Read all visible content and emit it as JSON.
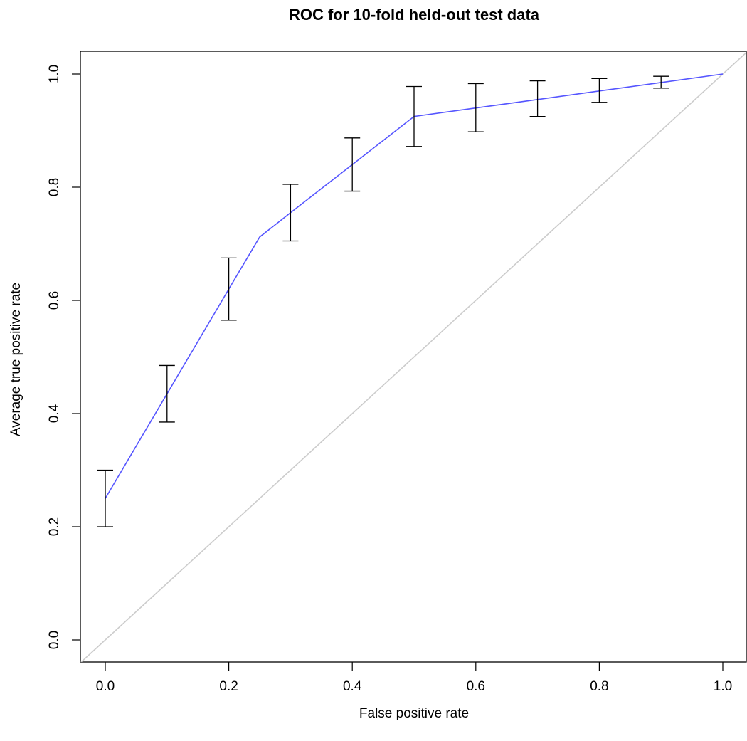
{
  "chart_data": {
    "type": "line",
    "title": "ROC for 10-fold held-out test data",
    "xlabel": "False positive rate",
    "ylabel": "Average true positive rate",
    "xlim": [
      0,
      1
    ],
    "ylim": [
      0,
      1
    ],
    "xticks": [
      "0.0",
      "0.2",
      "0.4",
      "0.6",
      "0.8",
      "1.0"
    ],
    "yticks": [
      "0.0",
      "0.2",
      "0.4",
      "0.6",
      "0.8",
      "1.0"
    ],
    "grid": false,
    "colors": {
      "roc_line": "#5555ff",
      "diagonal": "#cccccc",
      "error_bars": "#000000",
      "axes": "#000000"
    },
    "series": [
      {
        "x": [
          0.0,
          0.1,
          0.2,
          0.25,
          0.3,
          0.4,
          0.5,
          0.6,
          0.7,
          0.8,
          0.9,
          1.0
        ],
        "y": [
          0.25,
          0.435,
          0.62,
          0.712,
          0.755,
          0.84,
          0.925,
          0.94,
          0.955,
          0.97,
          0.985,
          1.0
        ]
      }
    ],
    "error_bars": [
      {
        "x": 0.0,
        "low": 0.2,
        "high": 0.3
      },
      {
        "x": 0.1,
        "low": 0.385,
        "high": 0.485
      },
      {
        "x": 0.2,
        "low": 0.565,
        "high": 0.675
      },
      {
        "x": 0.3,
        "low": 0.705,
        "high": 0.805
      },
      {
        "x": 0.4,
        "low": 0.793,
        "high": 0.887
      },
      {
        "x": 0.5,
        "low": 0.872,
        "high": 0.978
      },
      {
        "x": 0.6,
        "low": 0.898,
        "high": 0.983
      },
      {
        "x": 0.7,
        "low": 0.925,
        "high": 0.988
      },
      {
        "x": 0.8,
        "low": 0.95,
        "high": 0.992
      },
      {
        "x": 0.9,
        "low": 0.975,
        "high": 0.996
      }
    ],
    "reference_line": {
      "x": [
        0,
        1
      ],
      "y": [
        0,
        1
      ]
    }
  }
}
